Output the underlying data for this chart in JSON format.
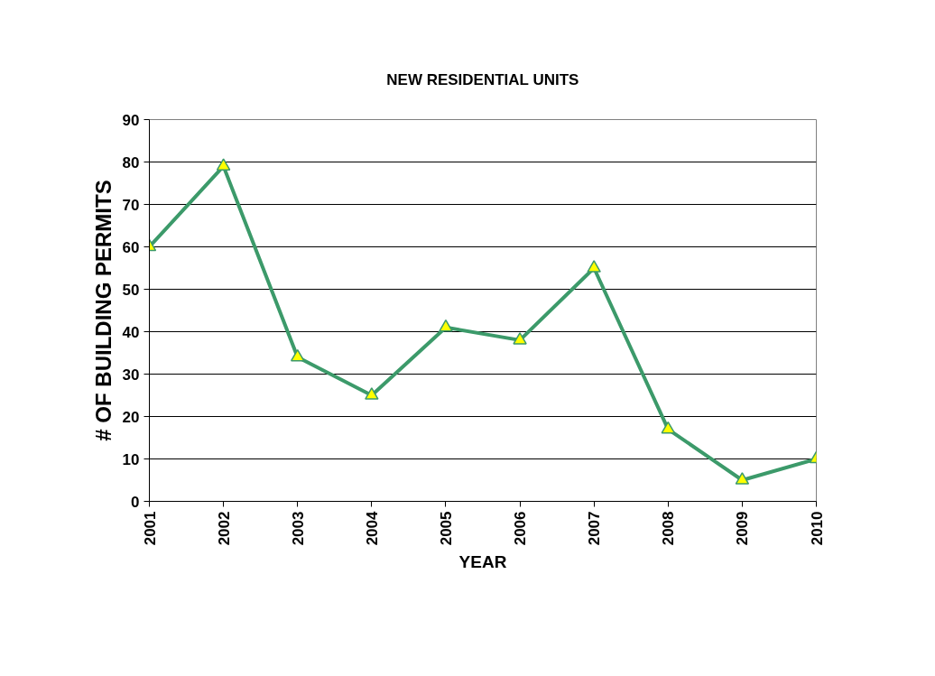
{
  "chart_data": {
    "type": "line",
    "title": "NEW RESIDENTIAL UNITS",
    "xlabel": "YEAR",
    "ylabel": "# OF BUILDING PERMITS",
    "categories": [
      "2001",
      "2002",
      "2003",
      "2004",
      "2005",
      "2006",
      "2007",
      "2008",
      "2009",
      "2010"
    ],
    "series": [
      {
        "color": "#3c9a6a",
        "values": [
          60,
          79,
          34,
          25,
          41,
          38,
          55,
          17,
          5,
          10
        ]
      }
    ],
    "ylim": [
      0,
      90
    ],
    "yticks": [
      0,
      10,
      20,
      30,
      40,
      50,
      60,
      70,
      80,
      90
    ],
    "grid": "y",
    "marker": "triangle",
    "line_style": "solid"
  }
}
